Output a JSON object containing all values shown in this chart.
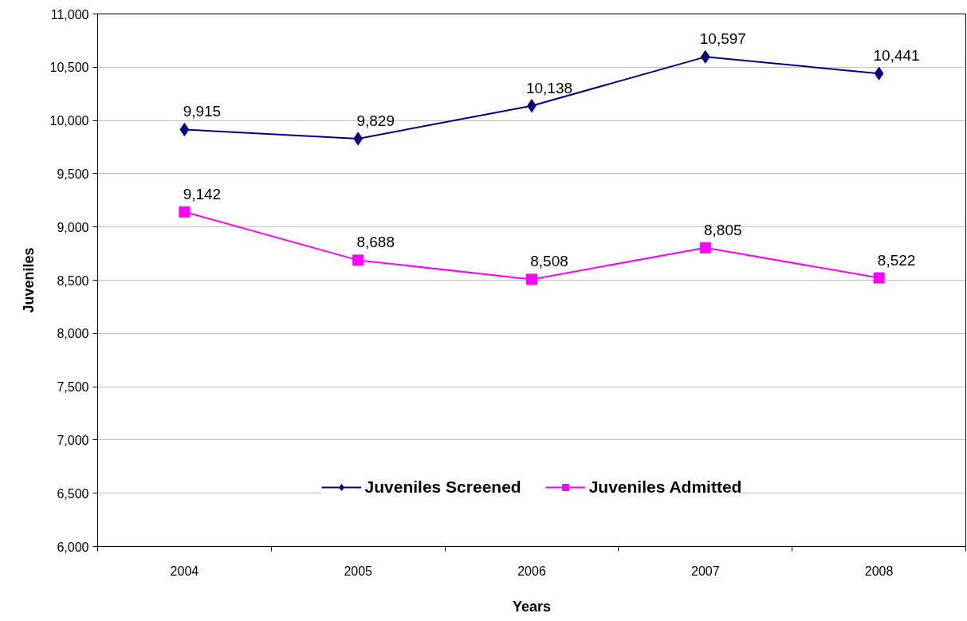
{
  "chart_data": {
    "type": "line",
    "xlabel": "Years",
    "ylabel": "Juveniles",
    "categories": [
      "2004",
      "2005",
      "2006",
      "2007",
      "2008"
    ],
    "series": [
      {
        "name": "Juveniles Screened",
        "color": "#000080",
        "marker": "diamond",
        "values": [
          9915,
          9829,
          10138,
          10597,
          10441
        ],
        "value_labels": [
          "9,915",
          "9,829",
          "10,138",
          "10,597",
          "10,441"
        ]
      },
      {
        "name": "Juveniles Admitted",
        "color": "#ff00ff",
        "marker": "square",
        "values": [
          9142,
          8688,
          8508,
          8805,
          8522
        ],
        "value_labels": [
          "9,142",
          "8,688",
          "8,508",
          "8,805",
          "8,522"
        ]
      }
    ],
    "ylim": [
      6000,
      11000
    ],
    "yticks": [
      {
        "value": 6000,
        "label": "6,000"
      },
      {
        "value": 6500,
        "label": "6,500"
      },
      {
        "value": 7000,
        "label": "7,000"
      },
      {
        "value": 7500,
        "label": "7,500"
      },
      {
        "value": 8000,
        "label": "8,000"
      },
      {
        "value": 8500,
        "label": "8,500"
      },
      {
        "value": 9000,
        "label": "9,000"
      },
      {
        "value": 9500,
        "label": "9,500"
      },
      {
        "value": 10000,
        "label": "10,000"
      },
      {
        "value": 10500,
        "label": "10,500"
      },
      {
        "value": 11000,
        "label": "11,000"
      }
    ],
    "grid": "y",
    "legend": "bottom"
  }
}
